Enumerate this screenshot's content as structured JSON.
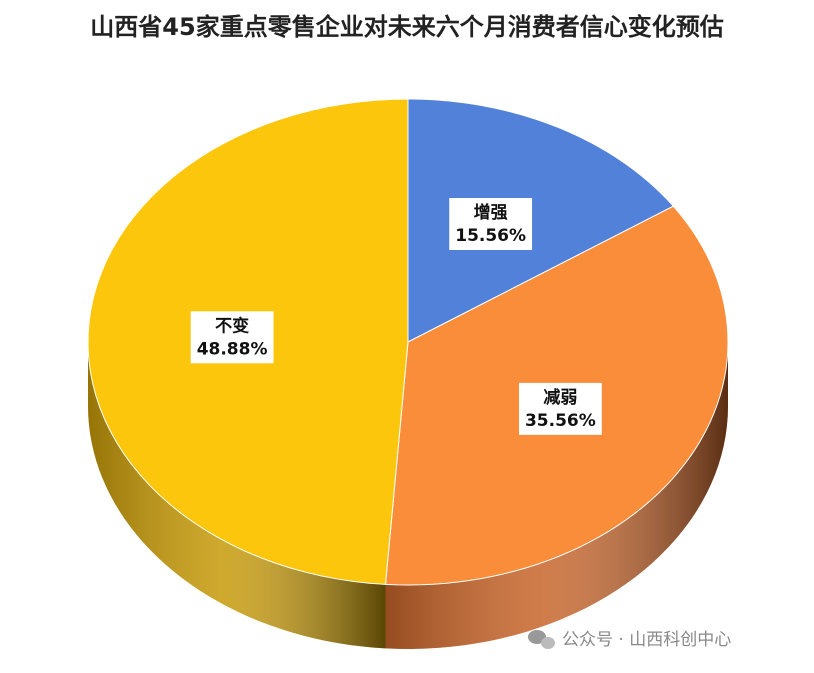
{
  "chart_data": {
    "type": "pie",
    "title": "山西省45家重点零售企业对未来六个月消费者信心变化预估",
    "categories": [
      "增强",
      "减弱",
      "不变"
    ],
    "values": [
      15.56,
      35.56,
      48.88
    ],
    "value_labels": [
      "15.56%",
      "35.56%",
      "48.88%"
    ],
    "colors": [
      "#5281da",
      "#f98d3a",
      "#fcc60c"
    ],
    "side_colors": [
      "#3a5ea0",
      "#c8652a",
      "#c79a08"
    ]
  },
  "watermark": "公众号 · 山西科创中心"
}
